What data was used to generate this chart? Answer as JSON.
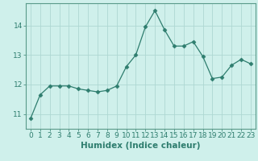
{
  "x": [
    0,
    1,
    2,
    3,
    4,
    5,
    6,
    7,
    8,
    9,
    10,
    11,
    12,
    13,
    14,
    15,
    16,
    17,
    18,
    19,
    20,
    21,
    22,
    23
  ],
  "y": [
    10.85,
    11.65,
    11.95,
    11.95,
    11.95,
    11.85,
    11.8,
    11.75,
    11.8,
    11.95,
    12.6,
    13.0,
    13.95,
    14.5,
    13.85,
    13.3,
    13.3,
    13.45,
    12.95,
    12.2,
    12.25,
    12.65,
    12.85,
    12.7
  ],
  "line_color": "#2e7d6e",
  "marker": "D",
  "marker_size": 2.5,
  "bg_color": "#cff0eb",
  "grid_color": "#aed8d2",
  "xlabel": "Humidex (Indice chaleur)",
  "xlim": [
    -0.5,
    23.5
  ],
  "ylim": [
    10.5,
    14.75
  ],
  "yticks": [
    11,
    12,
    13,
    14
  ],
  "xlabel_fontsize": 7.5,
  "tick_fontsize": 6.5,
  "axis_color": "#2e7d6e",
  "tick_color": "#2e7d6e",
  "spine_color": "#5a9a8a"
}
